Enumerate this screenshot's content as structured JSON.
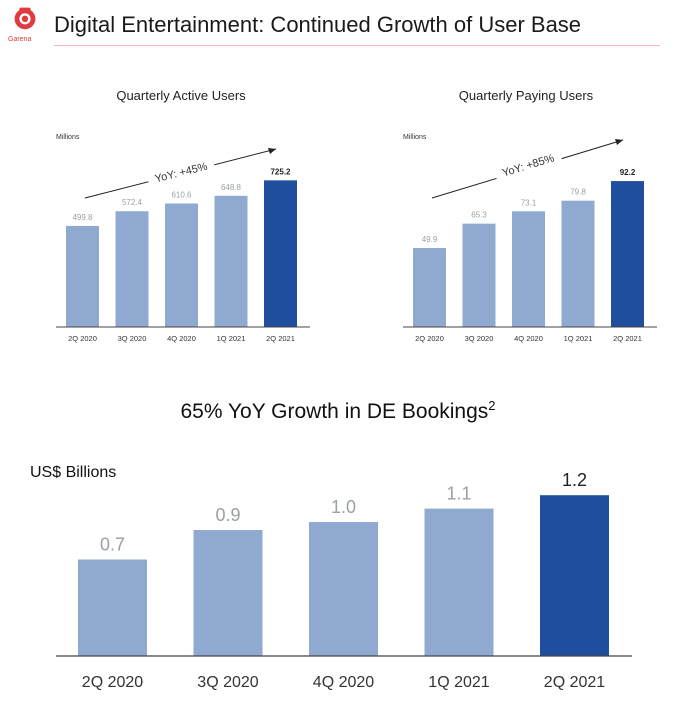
{
  "header": {
    "title": "Digital Entertainment: Continued Growth of User Base",
    "logo_text": "Garena",
    "logo_icon": "garena-logo-icon"
  },
  "colors": {
    "bar": "#8fa9d1",
    "bar_highlight": "#1f4e9e",
    "axis": "#444444",
    "rule": "#f2b8b8",
    "brand": "#e03a3e"
  },
  "charts": {
    "mau": {
      "title": "Quarterly Active Users",
      "units": "Millions",
      "yoy": "YoY: +45%"
    },
    "mpu": {
      "title": "Quarterly Paying Users",
      "units": "Millions",
      "yoy": "YoY: +85%"
    },
    "bookings": {
      "title": "65% YoY Growth in DE Bookings",
      "title_sup": "2",
      "units": "US$ Billions"
    }
  },
  "chart_data": [
    {
      "type": "bar",
      "title": "Quarterly Active Users",
      "ylabel": "Millions",
      "categories": [
        "2Q 2020",
        "3Q 2020",
        "4Q 2020",
        "1Q 2021",
        "2Q 2021"
      ],
      "values": [
        499.8,
        572.4,
        610.6,
        648.8,
        725.2
      ],
      "labels": [
        "499.8",
        "572.4",
        "610.6",
        "648.8",
        "725.2"
      ],
      "ylim": [
        0,
        900
      ],
      "annotation": "YoY: +45%",
      "grid": false
    },
    {
      "type": "bar",
      "title": "Quarterly Paying Users",
      "ylabel": "Millions",
      "categories": [
        "2Q 2020",
        "3Q 2020",
        "4Q 2020",
        "1Q 2021",
        "2Q 2021"
      ],
      "values": [
        49.9,
        65.3,
        73.1,
        79.8,
        92.2
      ],
      "labels": [
        "49.9",
        "65.3",
        "73.1",
        "79.8",
        "92.2"
      ],
      "ylim": [
        0,
        115
      ],
      "annotation": "YoY: +85%",
      "grid": false
    },
    {
      "type": "bar",
      "title": "65% YoY Growth in DE Bookings",
      "ylabel": "US$ Billions",
      "categories": [
        "2Q 2020",
        "3Q 2020",
        "4Q 2020",
        "1Q 2021",
        "2Q 2021"
      ],
      "values": [
        0.72,
        0.94,
        1.0,
        1.1,
        1.2
      ],
      "labels": [
        "0.7",
        "0.9",
        "1.0",
        "1.1",
        "1.2"
      ],
      "ylim": [
        0,
        1.5
      ],
      "grid": false
    }
  ]
}
